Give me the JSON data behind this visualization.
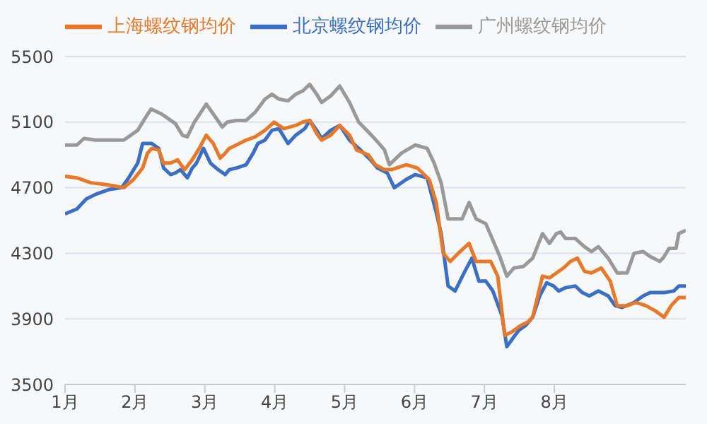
{
  "chart_data": {
    "type": "line",
    "legend": "top",
    "grid": "y",
    "marker": "none",
    "line_style": "solid",
    "xlim": [
      1,
      9.88
    ],
    "xticks": [
      {
        "value": 1,
        "label": "1月"
      },
      {
        "value": 2,
        "label": "2月"
      },
      {
        "value": 3,
        "label": "3月"
      },
      {
        "value": 4,
        "label": "4月"
      },
      {
        "value": 5,
        "label": "5月"
      },
      {
        "value": 6,
        "label": "6月"
      },
      {
        "value": 7,
        "label": "7月"
      },
      {
        "value": 8,
        "label": "8月"
      }
    ],
    "ylim": [
      3500,
      5500
    ],
    "yticks": [
      3500,
      3900,
      4300,
      4700,
      5100,
      5500
    ],
    "series": [
      {
        "name": "北京螺纹钢均价",
        "color": "#3a6fc4",
        "x": [
          1,
          1.17,
          1.3,
          1.44,
          1.64,
          1.81,
          1.91,
          2.04,
          2.11,
          2.24,
          2.34,
          2.41,
          2.51,
          2.58,
          2.65,
          2.75,
          2.82,
          2.88,
          2.98,
          3.08,
          3.19,
          3.29,
          3.35,
          3.45,
          3.59,
          3.69,
          3.76,
          3.86,
          3.96,
          4.06,
          4.19,
          4.3,
          4.43,
          4.5,
          4.6,
          4.67,
          4.8,
          4.93,
          5.07,
          5.2,
          5.37,
          5.47,
          5.61,
          5.71,
          5.88,
          6.01,
          6.18,
          6.31,
          6.38,
          6.48,
          6.58,
          6.72,
          6.82,
          6.92,
          7.02,
          7.12,
          7.25,
          7.32,
          7.42,
          7.49,
          7.59,
          7.69,
          7.79,
          7.89,
          7.99,
          8.06,
          8.16,
          8.3,
          8.4,
          8.5,
          8.63,
          8.77,
          8.87,
          8.97,
          9.14,
          9.27,
          9.37,
          9.57,
          9.71,
          9.78,
          9.88
        ],
        "values": [
          4540,
          4570,
          4630,
          4660,
          4690,
          4700,
          4760,
          4850,
          4970,
          4970,
          4940,
          4820,
          4780,
          4790,
          4810,
          4760,
          4820,
          4850,
          4940,
          4850,
          4810,
          4780,
          4810,
          4820,
          4840,
          4910,
          4970,
          4990,
          5050,
          5060,
          4970,
          5020,
          5060,
          5110,
          5050,
          5000,
          5050,
          5080,
          4990,
          4940,
          4870,
          4820,
          4790,
          4700,
          4750,
          4780,
          4760,
          4550,
          4420,
          4100,
          4070,
          4190,
          4270,
          4130,
          4130,
          4070,
          3920,
          3730,
          3790,
          3830,
          3860,
          3910,
          4040,
          4120,
          4100,
          4070,
          4090,
          4100,
          4060,
          4040,
          4070,
          4040,
          3980,
          3970,
          4000,
          4040,
          4060,
          4060,
          4070,
          4100,
          4100
        ]
      },
      {
        "name": "上海螺纹钢均价",
        "color": "#e8792b",
        "x": [
          1,
          1.17,
          1.37,
          1.57,
          1.71,
          1.84,
          1.98,
          2.11,
          2.18,
          2.24,
          2.34,
          2.41,
          2.51,
          2.61,
          2.71,
          2.82,
          2.92,
          3.02,
          3.12,
          3.22,
          3.29,
          3.35,
          3.45,
          3.59,
          3.72,
          3.86,
          3.99,
          4.13,
          4.3,
          4.4,
          4.5,
          4.6,
          4.67,
          4.8,
          4.93,
          5.07,
          5.17,
          5.34,
          5.44,
          5.57,
          5.67,
          5.88,
          6.04,
          6.21,
          6.31,
          6.41,
          6.51,
          6.65,
          6.78,
          6.88,
          7.09,
          7.19,
          7.29,
          7.39,
          7.52,
          7.62,
          7.69,
          7.83,
          7.93,
          8.03,
          8.13,
          8.23,
          8.33,
          8.43,
          8.53,
          8.67,
          8.8,
          8.9,
          9.04,
          9.17,
          9.31,
          9.44,
          9.57,
          9.67,
          9.78,
          9.88
        ],
        "values": [
          4770,
          4760,
          4730,
          4720,
          4710,
          4700,
          4750,
          4820,
          4910,
          4940,
          4930,
          4850,
          4850,
          4870,
          4810,
          4870,
          4940,
          5020,
          4970,
          4880,
          4910,
          4940,
          4960,
          4990,
          5010,
          5050,
          5100,
          5060,
          5080,
          5100,
          5110,
          5030,
          4990,
          5020,
          5080,
          5020,
          4930,
          4900,
          4840,
          4810,
          4810,
          4840,
          4820,
          4750,
          4610,
          4300,
          4250,
          4310,
          4360,
          4250,
          4250,
          4160,
          3800,
          3820,
          3860,
          3880,
          3910,
          4160,
          4150,
          4180,
          4210,
          4250,
          4270,
          4190,
          4180,
          4210,
          4130,
          3980,
          3980,
          4000,
          3980,
          3950,
          3910,
          3980,
          4030,
          4030
        ]
      },
      {
        "name": "广州螺纹钢均价",
        "color": "#999999",
        "x": [
          1,
          1.17,
          1.27,
          1.44,
          1.84,
          2.04,
          2.14,
          2.23,
          2.38,
          2.58,
          2.68,
          2.75,
          2.85,
          3.02,
          3.12,
          3.25,
          3.32,
          3.45,
          3.59,
          3.72,
          3.86,
          3.96,
          4.06,
          4.19,
          4.3,
          4.4,
          4.5,
          4.6,
          4.67,
          4.8,
          4.93,
          5.07,
          5.2,
          5.34,
          5.47,
          5.57,
          5.64,
          5.81,
          6.01,
          6.18,
          6.28,
          6.38,
          6.48,
          6.68,
          6.78,
          6.88,
          7.02,
          7.22,
          7.32,
          7.42,
          7.56,
          7.69,
          7.83,
          7.93,
          8.03,
          8.09,
          8.16,
          8.3,
          8.43,
          8.53,
          8.63,
          8.77,
          8.9,
          9.04,
          9.14,
          9.27,
          9.37,
          9.51,
          9.57,
          9.64,
          9.74,
          9.78,
          9.88
        ],
        "values": [
          4960,
          4960,
          5000,
          4990,
          4990,
          5050,
          5120,
          5180,
          5150,
          5090,
          5020,
          5010,
          5100,
          5210,
          5150,
          5070,
          5100,
          5110,
          5110,
          5160,
          5240,
          5270,
          5240,
          5230,
          5270,
          5290,
          5330,
          5270,
          5220,
          5260,
          5320,
          5220,
          5100,
          5040,
          4980,
          4930,
          4840,
          4910,
          4960,
          4940,
          4850,
          4730,
          4510,
          4510,
          4610,
          4510,
          4480,
          4280,
          4160,
          4210,
          4220,
          4270,
          4420,
          4360,
          4420,
          4430,
          4390,
          4390,
          4340,
          4310,
          4340,
          4270,
          4180,
          4180,
          4300,
          4310,
          4280,
          4250,
          4280,
          4330,
          4330,
          4420,
          4440
        ]
      }
    ]
  }
}
